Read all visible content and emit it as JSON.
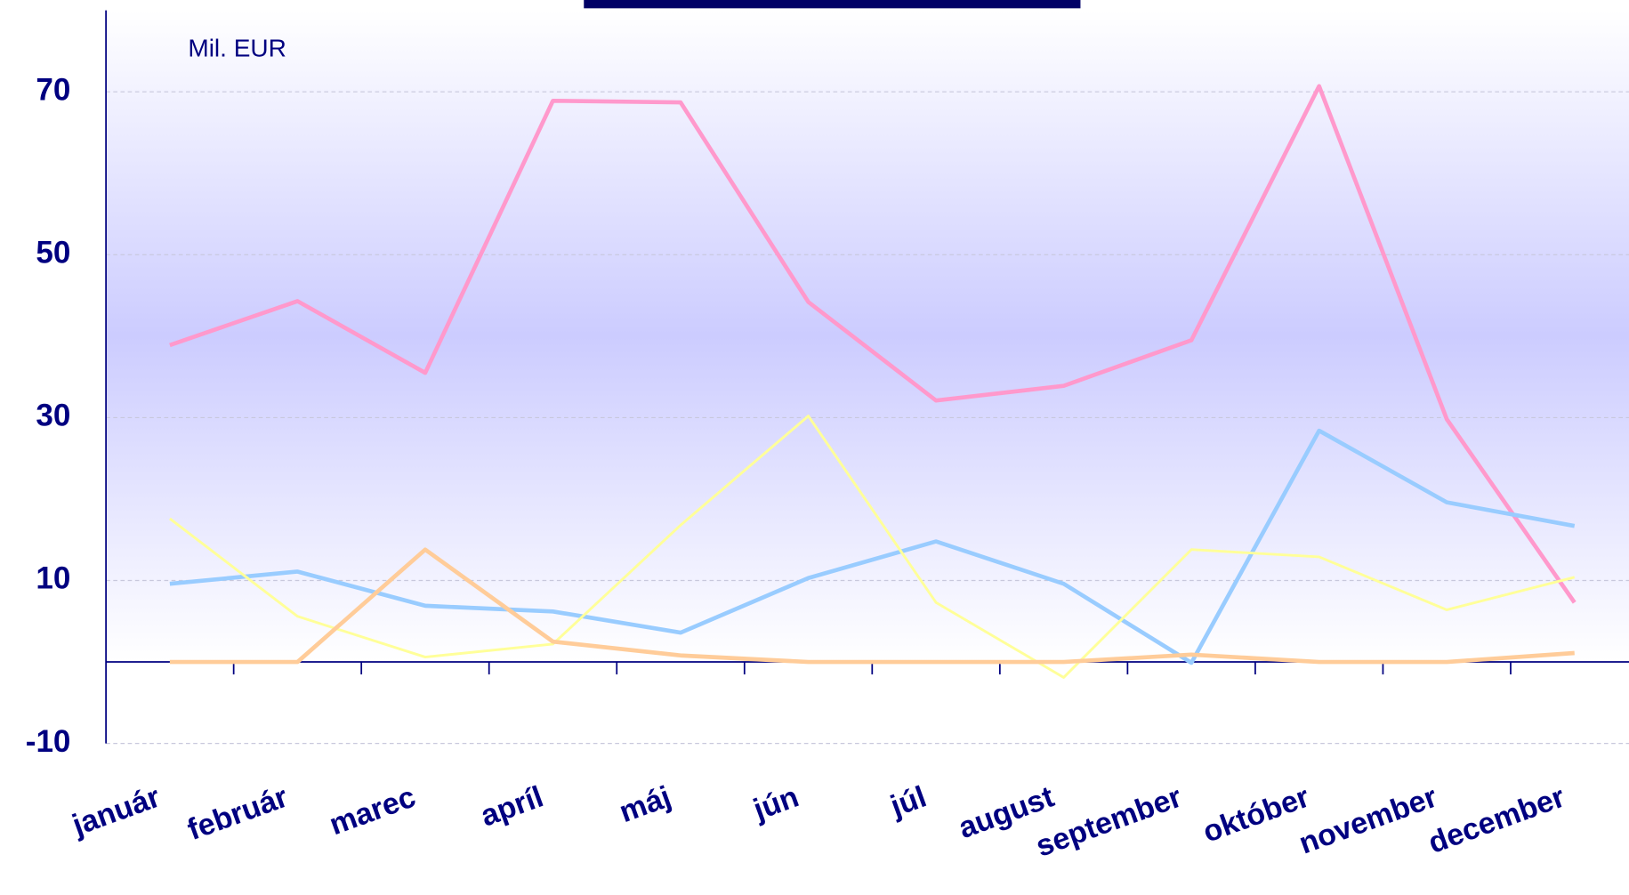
{
  "chart_data": {
    "type": "line",
    "unit_label": "Mil. EUR",
    "categories": [
      "január",
      "február",
      "marec",
      "apríl",
      "máj",
      "jún",
      "júl",
      "august",
      "september",
      "október",
      "november",
      "december"
    ],
    "series": [
      {
        "color": "#ff99cc",
        "width": 4,
        "values": [
          38.9,
          44.3,
          35.5,
          68.9,
          68.7,
          44.2,
          32.1,
          33.9,
          39.5,
          70.7,
          29.8,
          7.3
        ]
      },
      {
        "color": "#99ccff",
        "width": 4,
        "values": [
          9.6,
          11.1,
          6.9,
          6.2,
          3.6,
          10.3,
          14.8,
          9.6,
          -0.1,
          28.4,
          19.6,
          16.7
        ]
      },
      {
        "color": "#ffff99",
        "width": 2.5,
        "values": [
          17.6,
          5.6,
          0.6,
          2.2,
          16.8,
          30.2,
          7.3,
          -1.9,
          13.8,
          12.9,
          6.4,
          10.4
        ]
      },
      {
        "color": "#ffcc99",
        "width": 4,
        "values": [
          0,
          0,
          13.8,
          2.5,
          0.8,
          0,
          0,
          0,
          0.9,
          0,
          0,
          1.1
        ]
      }
    ],
    "ylim": [
      -10,
      80
    ],
    "yticks": [
      70,
      50,
      30,
      10,
      -10
    ],
    "grid": true
  }
}
